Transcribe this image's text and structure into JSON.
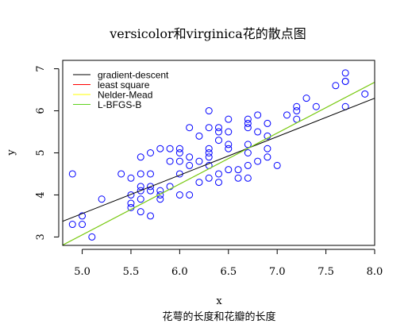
{
  "chart_data": {
    "type": "scatter",
    "title": "versicolor和virginica花的散点图",
    "subtitle": "花萼的长度和花瓣的长度",
    "xlabel": "x",
    "ylabel": "y",
    "xlim": [
      4.8,
      8.0
    ],
    "ylim": [
      2.8,
      7.2
    ],
    "x_ticks": [
      5.0,
      5.5,
      6.0,
      6.5,
      7.0,
      7.5,
      8.0
    ],
    "x_tick_labels": [
      "5.0",
      "5.5",
      "6.0",
      "6.5",
      "7.0",
      "7.5",
      "8.0"
    ],
    "y_ticks": [
      3,
      4,
      5,
      6,
      7
    ],
    "y_tick_labels": [
      "3",
      "4",
      "5",
      "6",
      "7"
    ],
    "grid": false,
    "legend_position": "top-left",
    "point_color": "#0000ff",
    "points": [
      [
        4.9,
        4.5
      ],
      [
        4.9,
        3.3
      ],
      [
        5.0,
        3.5
      ],
      [
        5.0,
        3.3
      ],
      [
        5.1,
        3.0
      ],
      [
        5.2,
        3.9
      ],
      [
        5.4,
        4.5
      ],
      [
        5.5,
        4.0
      ],
      [
        5.5,
        3.8
      ],
      [
        5.5,
        3.7
      ],
      [
        5.5,
        4.4
      ],
      [
        5.6,
        4.5
      ],
      [
        5.6,
        3.6
      ],
      [
        5.6,
        4.2
      ],
      [
        5.6,
        4.1
      ],
      [
        5.6,
        3.9
      ],
      [
        5.6,
        4.9
      ],
      [
        5.7,
        4.5
      ],
      [
        5.7,
        4.2
      ],
      [
        5.7,
        4.1
      ],
      [
        5.7,
        3.5
      ],
      [
        5.7,
        5.0
      ],
      [
        5.8,
        4.1
      ],
      [
        5.8,
        4.0
      ],
      [
        5.8,
        3.9
      ],
      [
        5.8,
        5.1
      ],
      [
        5.9,
        4.8
      ],
      [
        5.9,
        4.2
      ],
      [
        5.9,
        5.1
      ],
      [
        6.0,
        4.5
      ],
      [
        6.0,
        4.0
      ],
      [
        6.0,
        5.1
      ],
      [
        6.0,
        4.8
      ],
      [
        6.0,
        5.0
      ],
      [
        6.1,
        4.7
      ],
      [
        6.1,
        4.0
      ],
      [
        6.1,
        5.6
      ],
      [
        6.1,
        4.9
      ],
      [
        6.2,
        4.3
      ],
      [
        6.2,
        4.8
      ],
      [
        6.2,
        5.4
      ],
      [
        6.3,
        4.7
      ],
      [
        6.3,
        4.4
      ],
      [
        6.3,
        4.9
      ],
      [
        6.3,
        6.0
      ],
      [
        6.3,
        5.1
      ],
      [
        6.3,
        5.6
      ],
      [
        6.3,
        5.0
      ],
      [
        6.4,
        4.5
      ],
      [
        6.4,
        4.3
      ],
      [
        6.4,
        5.3
      ],
      [
        6.4,
        5.5
      ],
      [
        6.4,
        5.6
      ],
      [
        6.5,
        4.6
      ],
      [
        6.5,
        5.8
      ],
      [
        6.5,
        5.5
      ],
      [
        6.5,
        5.1
      ],
      [
        6.5,
        5.2
      ],
      [
        6.6,
        4.6
      ],
      [
        6.6,
        4.4
      ],
      [
        6.7,
        4.7
      ],
      [
        6.7,
        4.4
      ],
      [
        6.7,
        5.0
      ],
      [
        6.7,
        5.8
      ],
      [
        6.7,
        5.7
      ],
      [
        6.7,
        5.6
      ],
      [
        6.7,
        5.2
      ],
      [
        6.8,
        4.8
      ],
      [
        6.8,
        5.5
      ],
      [
        6.8,
        5.9
      ],
      [
        6.9,
        4.9
      ],
      [
        6.9,
        5.4
      ],
      [
        6.9,
        5.7
      ],
      [
        6.9,
        5.1
      ],
      [
        7.0,
        4.7
      ],
      [
        7.1,
        5.9
      ],
      [
        7.2,
        6.1
      ],
      [
        7.2,
        5.8
      ],
      [
        7.2,
        6.0
      ],
      [
        7.3,
        6.3
      ],
      [
        7.4,
        6.1
      ],
      [
        7.6,
        6.6
      ],
      [
        7.7,
        6.7
      ],
      [
        7.7,
        6.9
      ],
      [
        7.7,
        6.7
      ],
      [
        7.7,
        6.1
      ],
      [
        7.9,
        6.4
      ]
    ],
    "series": [
      {
        "name": "gradient-descent",
        "color": "#000000",
        "intercept": -1.02,
        "slope": 0.915
      },
      {
        "name": "least square",
        "color": "#ff0000",
        "intercept": -3.0,
        "slope": 1.21
      },
      {
        "name": "Nelder-Mead",
        "color": "#ffff00",
        "intercept": -3.0,
        "slope": 1.21
      },
      {
        "name": "L-BFGS-B",
        "color": "#5fd21f",
        "intercept": -3.0,
        "slope": 1.21
      }
    ]
  }
}
